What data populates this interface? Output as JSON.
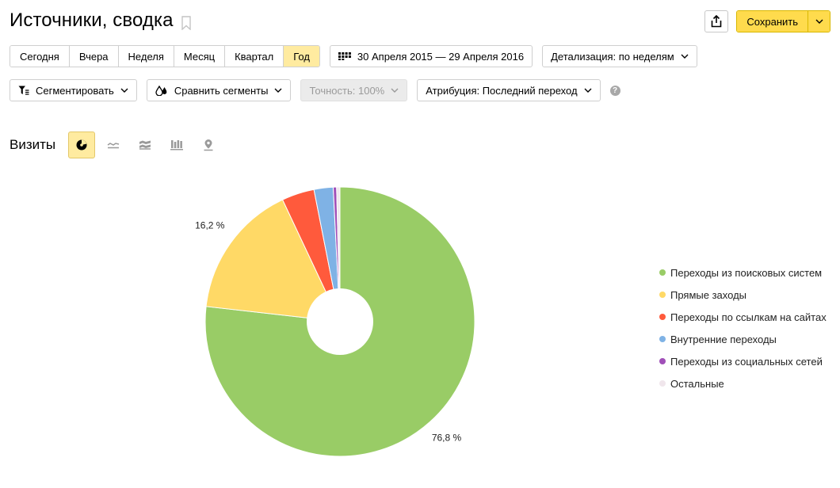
{
  "header": {
    "title": "Источники, сводка",
    "save_label": "Сохранить"
  },
  "period_buttons": [
    {
      "label": "Сегодня",
      "active": false
    },
    {
      "label": "Вчера",
      "active": false
    },
    {
      "label": "Неделя",
      "active": false
    },
    {
      "label": "Месяц",
      "active": false
    },
    {
      "label": "Квартал",
      "active": false
    },
    {
      "label": "Год",
      "active": true
    }
  ],
  "date_range": "30 Апреля 2015 — 29 Апреля 2016",
  "detail": "Детализация: по неделям",
  "segment_label": "Сегментировать",
  "compare_label": "Сравнить сегменты",
  "accuracy_label": "Точность: 100%",
  "attribution_label": "Атрибуция: Последний переход",
  "help_glyph": "?",
  "chart_section_title": "Визиты",
  "chart_types": [
    "pie-chart-icon",
    "line-chart-icon",
    "area-chart-icon",
    "bar-chart-icon",
    "map-marker-icon"
  ],
  "colors": {
    "accent_yellow": "#ffdb4d",
    "active_bg": "#ffeba0"
  },
  "chart_data": {
    "type": "pie",
    "donut": true,
    "legend_position": "right",
    "labels": [
      "Переходы из поисковых систем",
      "Прямые заходы",
      "Переходы по ссылкам на сайтах",
      "Внутренние переходы",
      "Переходы из социальных сетей",
      "Остальные"
    ],
    "values": [
      76.8,
      16.2,
      3.9,
      2.3,
      0.4,
      0.4
    ],
    "colors": [
      "#99cc66",
      "#ffd966",
      "#ff5a3c",
      "#7fb2e5",
      "#a04fb8",
      "#f0e6ec"
    ],
    "data_labels": [
      "76,8 %",
      "16,2 %",
      "",
      "",
      "",
      ""
    ]
  }
}
